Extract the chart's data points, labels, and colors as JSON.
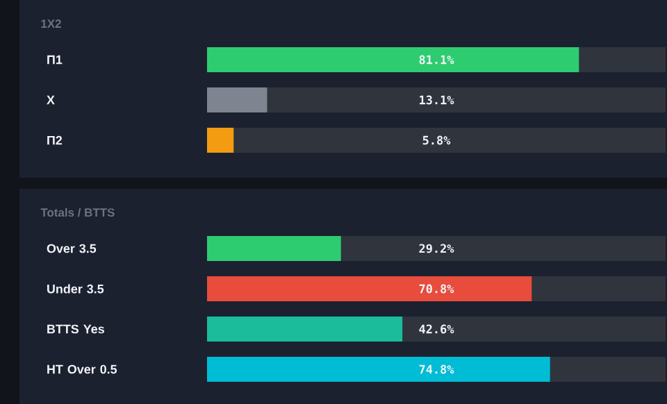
{
  "chart_data": [
    {
      "type": "bar",
      "orientation": "horizontal",
      "title": "1X2",
      "categories": [
        "П1",
        "X",
        "П2"
      ],
      "values": [
        81.1,
        13.1,
        5.8
      ],
      "colors": [
        "#2ecc71",
        "#7f8590",
        "#f39c12"
      ],
      "value_labels": [
        "81.1%",
        "13.1%",
        "5.8%"
      ],
      "xlim": [
        0,
        100
      ]
    },
    {
      "type": "bar",
      "orientation": "horizontal",
      "title": "Totals / BTTS",
      "categories": [
        "Over 3.5",
        "Under 3.5",
        "BTTS Yes",
        "HT Over 0.5"
      ],
      "values": [
        29.2,
        70.8,
        42.6,
        74.8
      ],
      "colors": [
        "#2ecc71",
        "#e74c3c",
        "#1abc9c",
        "#00bcd4"
      ],
      "value_labels": [
        "29.2%",
        "70.8%",
        "42.6%",
        "74.8%"
      ],
      "xlim": [
        0,
        100
      ]
    }
  ]
}
